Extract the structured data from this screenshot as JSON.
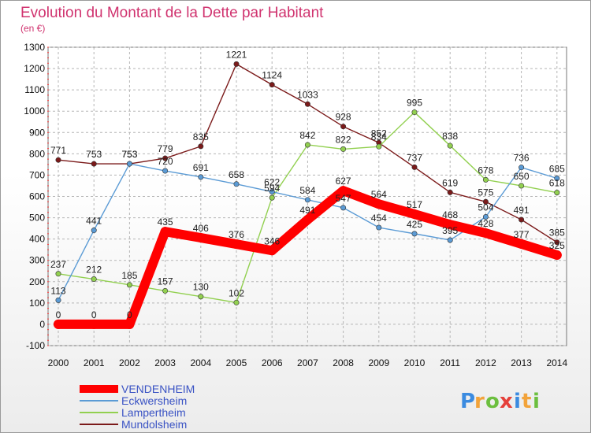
{
  "chart_data": {
    "type": "line",
    "title": "Evolution du Montant de la Dette par Habitant",
    "subtitle": "(en €)",
    "ylim": [
      -100,
      1300
    ],
    "yticks": [
      -100,
      0,
      100,
      200,
      300,
      400,
      500,
      600,
      700,
      800,
      900,
      1000,
      1100,
      1200,
      1300
    ],
    "x": [
      "2000",
      "2001",
      "2002",
      "2003",
      "2004",
      "2005",
      "2006",
      "2007",
      "2008",
      "2009",
      "2010",
      "2011",
      "2012",
      "2013",
      "2014"
    ],
    "grid": true,
    "legend_position": "bottom-left",
    "series": [
      {
        "name": "VENDENHEIM",
        "color": "#ff0000",
        "values": [
          0,
          0,
          0,
          435,
          406,
          376,
          346,
          491,
          627,
          564,
          517,
          468,
          428,
          377,
          325
        ]
      },
      {
        "name": "Eckwersheim",
        "color": "#5b9bd5",
        "values": [
          113,
          441,
          753,
          720,
          691,
          658,
          622,
          584,
          547,
          454,
          425,
          395,
          504,
          736,
          685
        ]
      },
      {
        "name": "Lampertheim",
        "color": "#92d050",
        "values": [
          237,
          212,
          185,
          157,
          130,
          102,
          594,
          842,
          822,
          834,
          995,
          838,
          678,
          650,
          618
        ]
      },
      {
        "name": "Mundolsheim",
        "color": "#7b1a1a",
        "values": [
          771,
          753,
          753,
          779,
          835,
          1221,
          1124,
          1033,
          928,
          852,
          737,
          619,
          575,
          491,
          385
        ]
      }
    ]
  },
  "logo": {
    "letters": [
      "P",
      "r",
      "o",
      "x",
      "i",
      "t",
      "i"
    ],
    "colors": [
      "#3b8be0",
      "#f2a33a",
      "#6cbf3f",
      "#e5403a",
      "#3b8be0",
      "#f2a33a",
      "#6cbf3f"
    ]
  }
}
